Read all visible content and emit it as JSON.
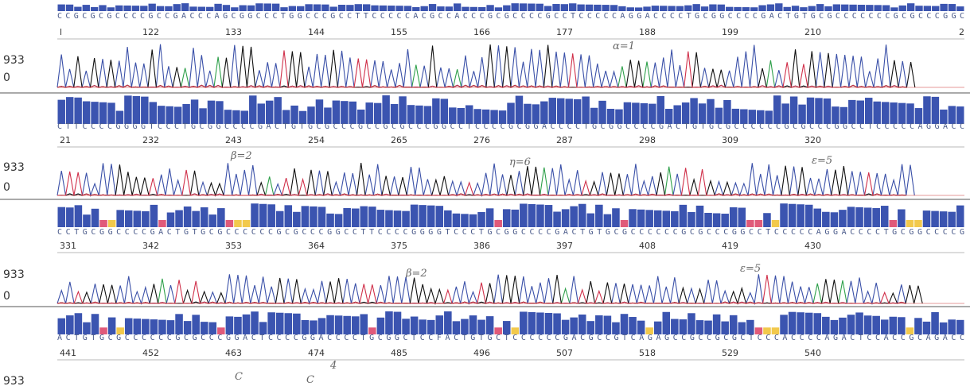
{
  "rows": [
    {
      "sequence": "CCGCGCGCCCCGCCGACCCAGCGGCCCTGGCCCGCCTTCCCCCACGCCACCCGCGCCCCGCCTCCCCCAGGACCCCTGCGGCCCCGACTGTGCGCCCCCCCGCGCCCGGC",
      "positions": [
        "l",
        "122",
        "133",
        "144",
        "155",
        "166",
        "177",
        "188",
        "199",
        "210",
        "2"
      ],
      "y_labels": [
        "933",
        "0"
      ],
      "annotations": [
        "α=1"
      ]
    },
    {
      "sequence": "CTTCCCCGGGGTCCCTGCGGCCCCGACTGTGCGCCCGCCGCGCCCGGCCTCCCCGCGGACCCCTGCGGCCCCGACTGTGCGCCCCCCGCGCCCGGCCTCCCCCAGGACC",
      "positions": [
        "21",
        "232",
        "243",
        "254",
        "265",
        "276",
        "287",
        "298",
        "309",
        "320"
      ],
      "y_labels": [
        "933",
        "0"
      ],
      "annotations": [
        "β=2",
        "η=6",
        "ε=5"
      ]
    },
    {
      "sequence": "CCTGCGGCCCCGACTGTGCGCCCCCCGCGCCCGGCCTTCCCCGGGGTCCCTGCGGCCCCGACTGTGCGCCCCCCGCGCCCGGCCTCCCCCAGGACCCCTGCGGCCCCG",
      "positions": [
        "331",
        "342",
        "353",
        "364",
        "375",
        "386",
        "397",
        "408",
        "419",
        "430"
      ],
      "y_labels": [
        "933",
        "0"
      ],
      "annotations": [
        "β=2",
        "ε=5"
      ]
    },
    {
      "sequence": "ACTGTGCGCCCCCCGCGCCCGGACTCCCCGGACCCCTGCGGCTCCFACTGTGCTCCCCCCGACGCCGTCAGAGCCGCCGCGCTCCCACCCCAGACTCCACCGCAGACC",
      "positions": [
        "441",
        "452",
        "463",
        "474",
        "485",
        "496",
        "507",
        "518",
        "529",
        "540"
      ],
      "y_labels": [
        "933"
      ],
      "annotations": [
        "C",
        "C",
        "4"
      ]
    }
  ]
}
